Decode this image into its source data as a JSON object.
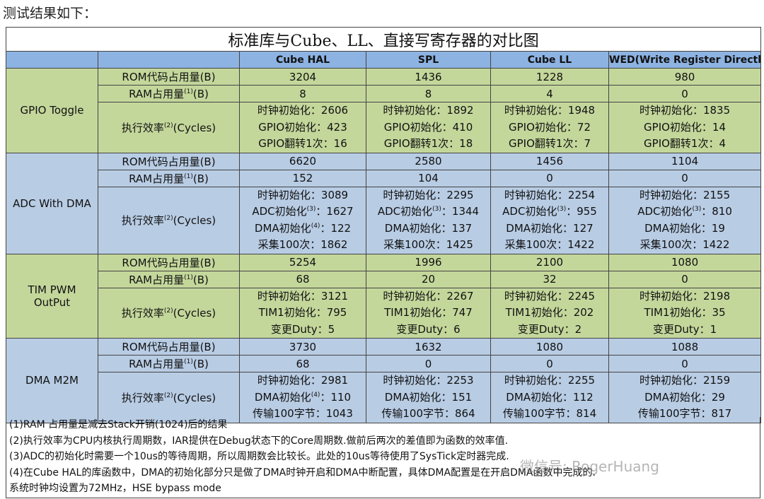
{
  "intro": "测试结果如下：",
  "table": {
    "title": "标准库与Cube、LL、直接写寄存器的对比图",
    "columns": [
      "Cube HAL",
      "SPL",
      "Cube LL",
      "WED(Write Register Directly)"
    ],
    "groups": [
      {
        "name": [
          "GPIO Toggle"
        ],
        "rows": [
          {
            "label": {
              "text": "ROM代码占用量(B)"
            },
            "cells": [
              "3204",
              "1436",
              "1228",
              "980"
            ]
          },
          {
            "label": {
              "text": "RAM占用量",
              "sup": "(1)",
              "rest": "(B)"
            },
            "cells": [
              "8",
              "8",
              "4",
              "0"
            ]
          },
          {
            "label": {
              "text": "执行效率",
              "sup": "(2)",
              "rest": "(Cycles)"
            },
            "cells": [
              [
                {
                  "text": "时钟初始化：2606"
                },
                {
                  "text": "GPIO初始化：423"
                },
                {
                  "text": "GPIO翻转1次：16"
                }
              ],
              [
                {
                  "text": "时钟初始化：1892"
                },
                {
                  "text": "GPIO初始化：410"
                },
                {
                  "text": "GPIO翻转1次：18"
                }
              ],
              [
                {
                  "text": "时钟初始化：1948"
                },
                {
                  "text": "GPIO初始化：72"
                },
                {
                  "text": "GPIO翻转1次：7"
                }
              ],
              [
                {
                  "text": "时钟初始化：1835"
                },
                {
                  "text": "GPIO初始化：14"
                },
                {
                  "text": "GPIO翻转1次：4"
                }
              ]
            ]
          }
        ]
      },
      {
        "name": [
          "ADC With DMA"
        ],
        "rows": [
          {
            "label": {
              "text": "ROM代码占用量(B)"
            },
            "cells": [
              "6620",
              "2580",
              "1456",
              "1104"
            ]
          },
          {
            "label": {
              "text": "RAM占用量",
              "sup": "(1)",
              "rest": "(B)"
            },
            "cells": [
              "152",
              "104",
              "0",
              "0"
            ]
          },
          {
            "label": {
              "text": "执行效率",
              "sup": "(2)",
              "rest": "(Cycles)"
            },
            "cells": [
              [
                {
                  "text": "时钟初始化：3089"
                },
                {
                  "text": "ADC初始化",
                  "sup": "(3)",
                  "rest": "：1627"
                },
                {
                  "text": "DMA初始化",
                  "sup": "(4)",
                  "rest": "：122"
                },
                {
                  "text": "采集100次：1862"
                }
              ],
              [
                {
                  "text": "时钟初始化：2295"
                },
                {
                  "text": "ADC初始化",
                  "sup": "(3)",
                  "rest": "：1344"
                },
                {
                  "text": "DMA初始化：137"
                },
                {
                  "text": "采集100次：1425"
                }
              ],
              [
                {
                  "text": "时钟初始化：2254"
                },
                {
                  "text": "ADC初始化",
                  "sup": "(3)",
                  "rest": "：955"
                },
                {
                  "text": "DMA初始化：127"
                },
                {
                  "text": "采集100次：1422"
                }
              ],
              [
                {
                  "text": "时钟初始化：2155"
                },
                {
                  "text": "ADC初始化",
                  "sup": "(3)",
                  "rest": "：810"
                },
                {
                  "text": "DMA初始化：19"
                },
                {
                  "text": "采集100次：1422"
                }
              ]
            ]
          }
        ]
      },
      {
        "name": [
          "TIM PWM",
          "OutPut"
        ],
        "rows": [
          {
            "label": {
              "text": "ROM代码占用量(B)"
            },
            "cells": [
              "5254",
              "1996",
              "2100",
              "1080"
            ]
          },
          {
            "label": {
              "text": "RAM占用量",
              "sup": "(1)",
              "rest": "(B)"
            },
            "cells": [
              "68",
              "20",
              "32",
              "0"
            ]
          },
          {
            "label": {
              "text": "执行效率",
              "sup": "(2)",
              "rest": "(Cycles)"
            },
            "cells": [
              [
                {
                  "text": "时钟初始化：3121"
                },
                {
                  "text": "TIM1初始化：795"
                },
                {
                  "text": "变更Duty：5"
                }
              ],
              [
                {
                  "text": "时钟初始化：2267"
                },
                {
                  "text": "TIM1初始化：747"
                },
                {
                  "text": "变更Duty：6"
                }
              ],
              [
                {
                  "text": "时钟初始化：2245"
                },
                {
                  "text": "TIM1初始化：202"
                },
                {
                  "text": "变更Duty：2"
                }
              ],
              [
                {
                  "text": "时钟初始化：2198"
                },
                {
                  "text": "TIM1初始化：35"
                },
                {
                  "text": "变更Duty：1"
                }
              ]
            ]
          }
        ]
      },
      {
        "name": [
          "DMA M2M"
        ],
        "rows": [
          {
            "label": {
              "text": "ROM代码占用量(B)"
            },
            "cells": [
              "3730",
              "1632",
              "1080",
              "1088"
            ]
          },
          {
            "label": {
              "text": "RAM占用量",
              "sup": "(1)",
              "rest": "(B)"
            },
            "cells": [
              "68",
              "0",
              "0",
              "0"
            ]
          },
          {
            "label": {
              "text": "执行效率",
              "sup": "(2)",
              "rest": "(Cycles)"
            },
            "cells": [
              [
                {
                  "text": "时钟初始化：2981"
                },
                {
                  "text": "DMA初始化",
                  "sup": "(4)",
                  "rest": "：110"
                },
                {
                  "text": "传输100字节：1043"
                }
              ],
              [
                {
                  "text": "时钟初始化：2253"
                },
                {
                  "text": "DMA初始化：151"
                },
                {
                  "text": "传输100字节：864"
                }
              ],
              [
                {
                  "text": "时钟初始化：2255"
                },
                {
                  "text": "DMA初始化：112"
                },
                {
                  "text": "传输100字节：814"
                }
              ],
              [
                {
                  "text": "时钟初始化：2159"
                },
                {
                  "text": "DMA初始化：29"
                },
                {
                  "text": "传输100字节：817"
                }
              ]
            ]
          }
        ]
      }
    ]
  },
  "notes": [
    "(1)RAM 占用量是减去Stack开销(1024)后的结果",
    "(2)执行效率为CPU内核执行周期数，IAR提供在Debug状态下的Core周期数.做前后两次的差值即为函数的效率值.",
    "(3)ADC的初始化时需要一个10us的等待周期，所以周期数会比较长。此处的10us等待使用了SysTick定时器完成.",
    "(4)在Cube HAL的库函数中，DMA的初始化部分只是做了DMA时钟开启和DMA中断配置，具体DMA配置是在开启DMA函数中完成的.",
    "系统时钟均设置为72MHz，HSE bypass mode"
  ],
  "watermark": "微信号: RogerHuang"
}
